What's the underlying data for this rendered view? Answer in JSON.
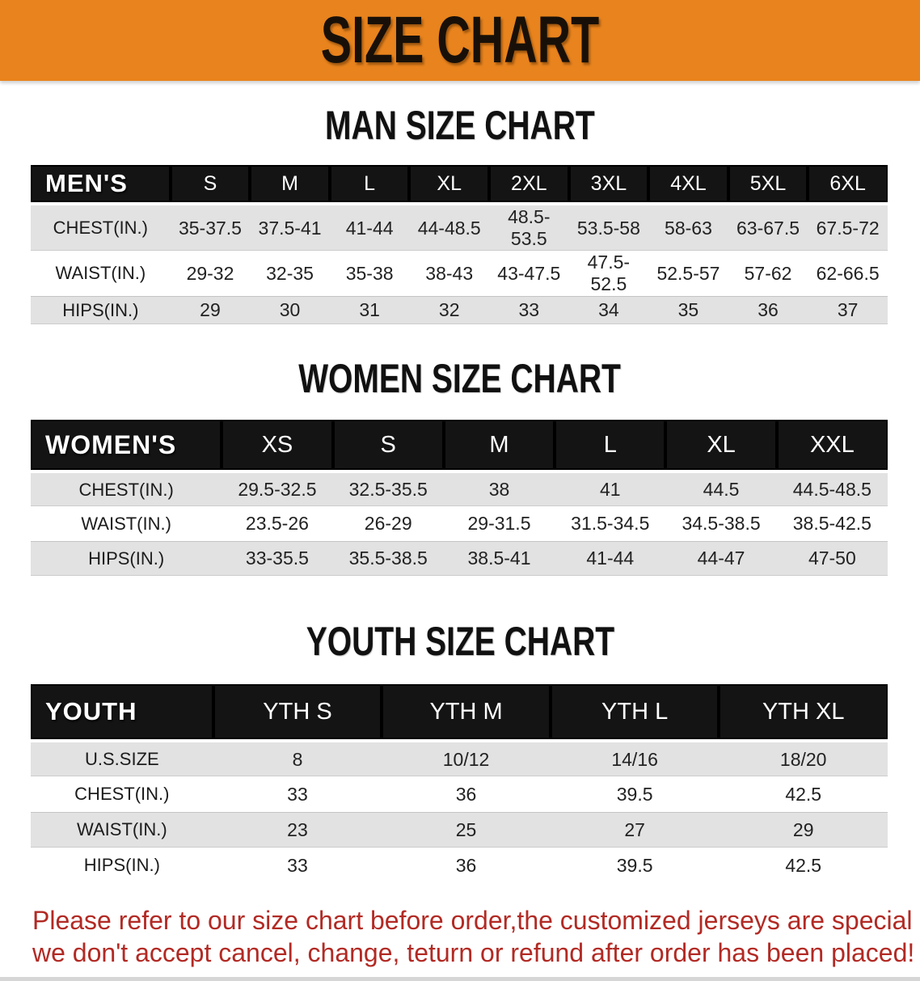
{
  "banner": {
    "title": "SIZE CHART",
    "bg_color": "#E8831D",
    "text_color": "#181008"
  },
  "sections": [
    {
      "heading": "MAN SIZE CHART",
      "table": {
        "header_label": "MEN'S",
        "columns": [
          "S",
          "M",
          "L",
          "XL",
          "2XL",
          "3XL",
          "4XL",
          "5XL",
          "6XL"
        ],
        "rows": [
          {
            "label": "CHEST(IN.)",
            "values": [
              "35-37.5",
              "37.5-41",
              "41-44",
              "44-48.5",
              "48.5-53.5",
              "53.5-58",
              "58-63",
              "63-67.5",
              "67.5-72"
            ]
          },
          {
            "label": "WAIST(IN.)",
            "values": [
              "29-32",
              "32-35",
              "35-38",
              "38-43",
              "43-47.5",
              "47.5-52.5",
              "52.5-57",
              "57-62",
              "62-66.5"
            ]
          },
          {
            "label": "HIPS(IN.)",
            "values": [
              "29",
              "30",
              "31",
              "32",
              "33",
              "34",
              "35",
              "36",
              "37"
            ]
          }
        ]
      }
    },
    {
      "heading": "WOMEN SIZE CHART",
      "table": {
        "header_label": "WOMEN'S",
        "columns": [
          "XS",
          "S",
          "M",
          "L",
          "XL",
          "XXL"
        ],
        "rows": [
          {
            "label": "CHEST(IN.)",
            "values": [
              "29.5-32.5",
              "32.5-35.5",
              "38",
              "41",
              "44.5",
              "44.5-48.5"
            ]
          },
          {
            "label": "WAIST(IN.)",
            "values": [
              "23.5-26",
              "26-29",
              "29-31.5",
              "31.5-34.5",
              "34.5-38.5",
              "38.5-42.5"
            ]
          },
          {
            "label": "HIPS(IN.)",
            "values": [
              "33-35.5",
              "35.5-38.5",
              "38.5-41",
              "41-44",
              "44-47",
              "47-50"
            ]
          }
        ]
      }
    },
    {
      "heading": "YOUTH SIZE CHART",
      "table": {
        "header_label": "YOUTH",
        "columns": [
          "YTH S",
          "YTH M",
          "YTH L",
          "YTH XL"
        ],
        "rows": [
          {
            "label": "U.S.SIZE",
            "values": [
              "8",
              "10/12",
              "14/16",
              "18/20"
            ]
          },
          {
            "label": "CHEST(IN.)",
            "values": [
              "33",
              "36",
              "39.5",
              "42.5"
            ]
          },
          {
            "label": "WAIST(IN.)",
            "values": [
              "23",
              "25",
              "27",
              "29"
            ]
          },
          {
            "label": "HIPS(IN.)",
            "values": [
              "33",
              "36",
              "39.5",
              "42.5"
            ]
          }
        ]
      }
    }
  ],
  "disclaimer": {
    "color": "#B22A24",
    "lines": [
      "Please refer to our size chart before order,the customized jerseys are special products,",
      "we don't accept cancel, change, teturn or refund after order has been placed!"
    ]
  }
}
